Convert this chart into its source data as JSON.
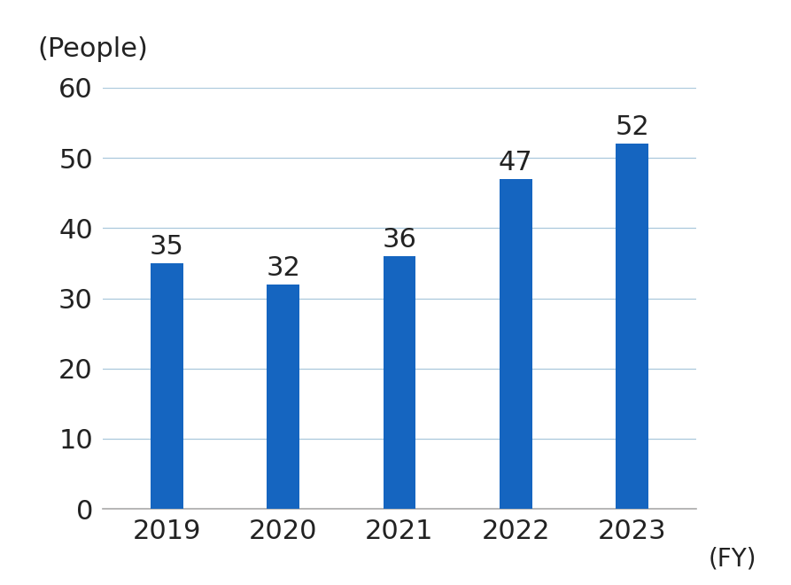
{
  "categories": [
    "2019",
    "2020",
    "2021",
    "2022",
    "2023"
  ],
  "values": [
    35,
    32,
    36,
    47,
    52
  ],
  "bar_color": "#1565C0",
  "ylabel": "(People)",
  "xlabel": "(FY)",
  "ylim": [
    0,
    60
  ],
  "yticks": [
    0,
    10,
    20,
    30,
    40,
    50,
    60
  ],
  "background_color": "#ffffff",
  "tick_fontsize": 22,
  "annotation_fontsize": 22,
  "ylabel_fontsize": 22,
  "xlabel_fontsize": 20,
  "bar_width": 0.28
}
